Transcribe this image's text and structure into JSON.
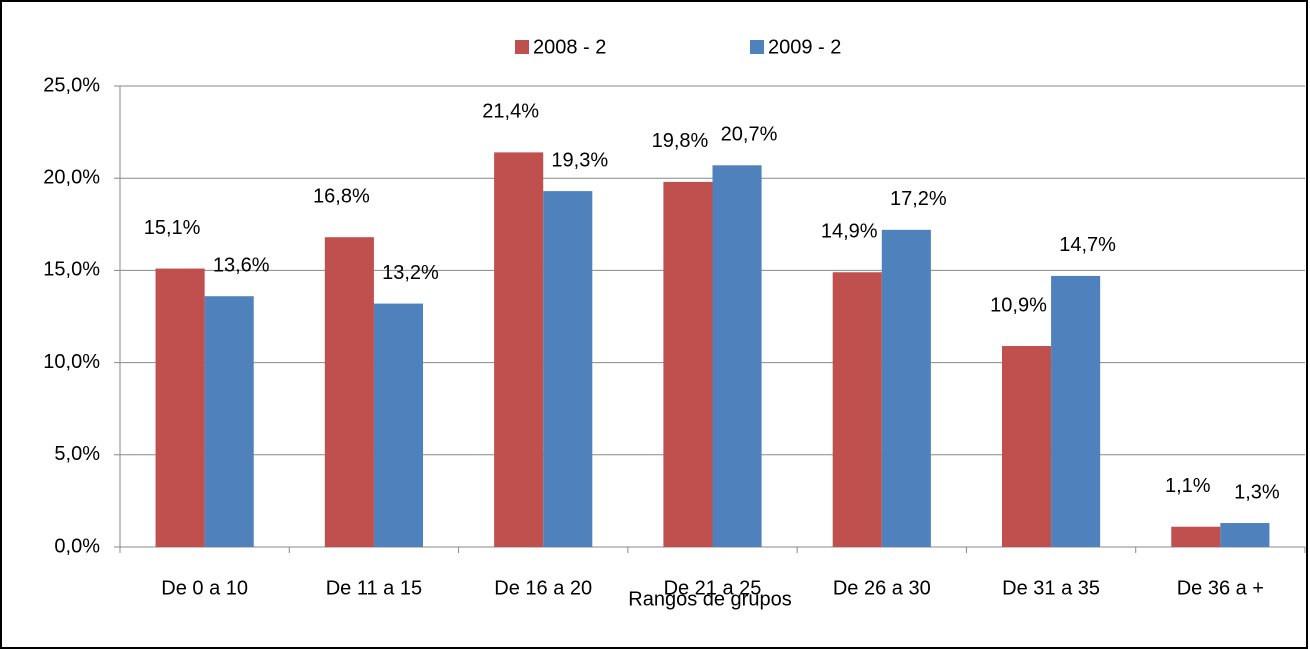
{
  "chart_data": {
    "type": "bar",
    "x_label": "Rangos de grupos",
    "categories": [
      "De 0 a 10",
      "De 11 a 15",
      "De 16 a 20",
      "De 21 a 25",
      "De 26 a 30",
      "De 31 a 35",
      "De 36 a +"
    ],
    "series": [
      {
        "name": "2008 - 2",
        "color": "#c0504d",
        "values": [
          15.1,
          16.8,
          21.4,
          19.8,
          14.9,
          10.9,
          1.1
        ],
        "value_labels": [
          "15,1%",
          "16,8%",
          "21,4%",
          "19,8%",
          "14,9%",
          "10,9%",
          "1,1%"
        ]
      },
      {
        "name": "2009 - 2",
        "color": "#4f81bd",
        "values": [
          13.6,
          13.2,
          19.3,
          20.7,
          17.2,
          14.7,
          1.3
        ],
        "value_labels": [
          "13,6%",
          "13,2%",
          "19,3%",
          "20,7%",
          "17,2%",
          "14,7%",
          "1,3%"
        ]
      }
    ],
    "ylim": [
      0,
      25
    ],
    "yticks": [
      {
        "value": 0,
        "label": "0,0%"
      },
      {
        "value": 5,
        "label": "5,0%"
      },
      {
        "value": 10,
        "label": "10,0%"
      },
      {
        "value": 15,
        "label": "15,0%"
      },
      {
        "value": 20,
        "label": "20,0%"
      },
      {
        "value": 25,
        "label": "25,0%"
      }
    ],
    "grid": true,
    "legend": "top"
  }
}
